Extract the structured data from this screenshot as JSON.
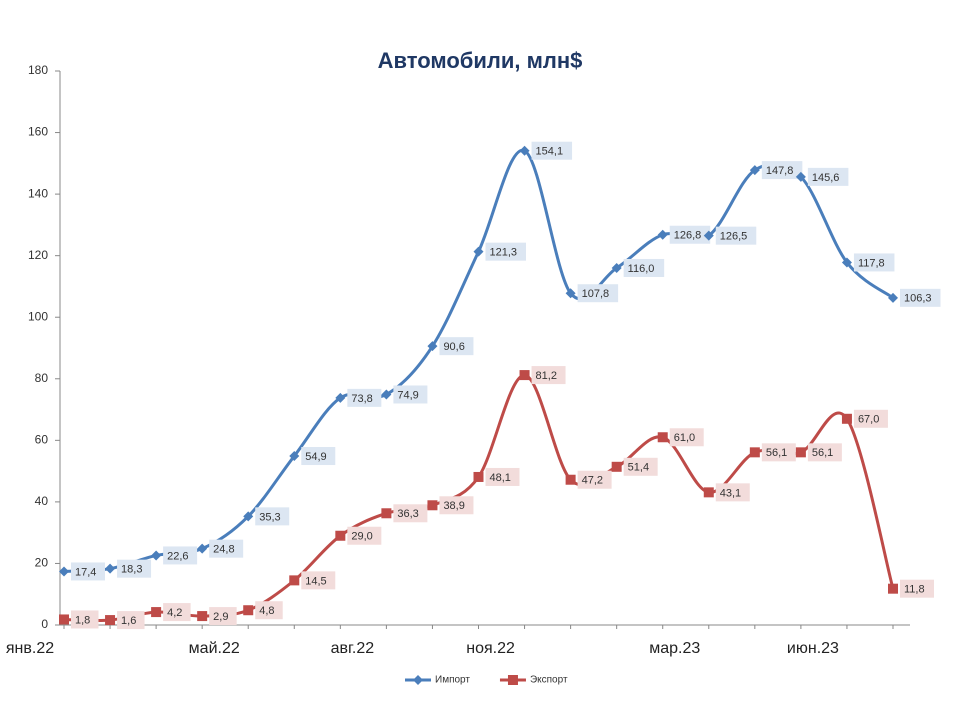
{
  "chart_data": {
    "type": "line",
    "title": "Автомобили, млн$",
    "categories": [
      "янв.22",
      null,
      null,
      null,
      "май.22",
      null,
      null,
      "авг.22",
      null,
      null,
      "ноя.22",
      null,
      null,
      null,
      "мар.23",
      null,
      null,
      "июн.23",
      null
    ],
    "series": [
      {
        "name": "Импорт",
        "color": "#4a7ebb",
        "marker": "diamond",
        "values": [
          17.4,
          18.3,
          22.6,
          24.8,
          35.3,
          54.9,
          73.8,
          74.9,
          90.6,
          121.3,
          154.1,
          107.8,
          116.0,
          126.8,
          126.5,
          147.8,
          145.6,
          117.8,
          106.3
        ],
        "value_labels": [
          "17,4",
          "18,3",
          "22,6",
          "24,8",
          "35,3",
          "54,9",
          "73,8",
          "74,9",
          "90,6",
          "121,3",
          "154,1",
          "107,8",
          "116,0",
          "126,8",
          "126,5",
          "147,8",
          "145,6",
          "117,8",
          "106,3"
        ]
      },
      {
        "name": "Экспорт",
        "color": "#be4b48",
        "marker": "square",
        "values": [
          1.8,
          1.6,
          4.2,
          2.9,
          4.8,
          14.5,
          29.0,
          36.3,
          38.9,
          48.1,
          81.2,
          47.2,
          51.4,
          61.0,
          43.1,
          56.1,
          56.1,
          67.0,
          11.8
        ],
        "value_labels": [
          "1,8",
          "1,6",
          "4,2",
          "2,9",
          "4,8",
          "14,5",
          "29,0",
          "36,3",
          "38,9",
          "48,1",
          "81,2",
          "47,2",
          "51,4",
          "61,0",
          "43,1",
          "56,1",
          "56,1",
          "67,0",
          "11,8"
        ]
      }
    ],
    "ylim": [
      0,
      180
    ],
    "yticks": [
      0,
      20,
      40,
      60,
      80,
      100,
      120,
      140,
      160,
      180
    ],
    "grid": false,
    "legend": "bottom",
    "smooth": true
  }
}
